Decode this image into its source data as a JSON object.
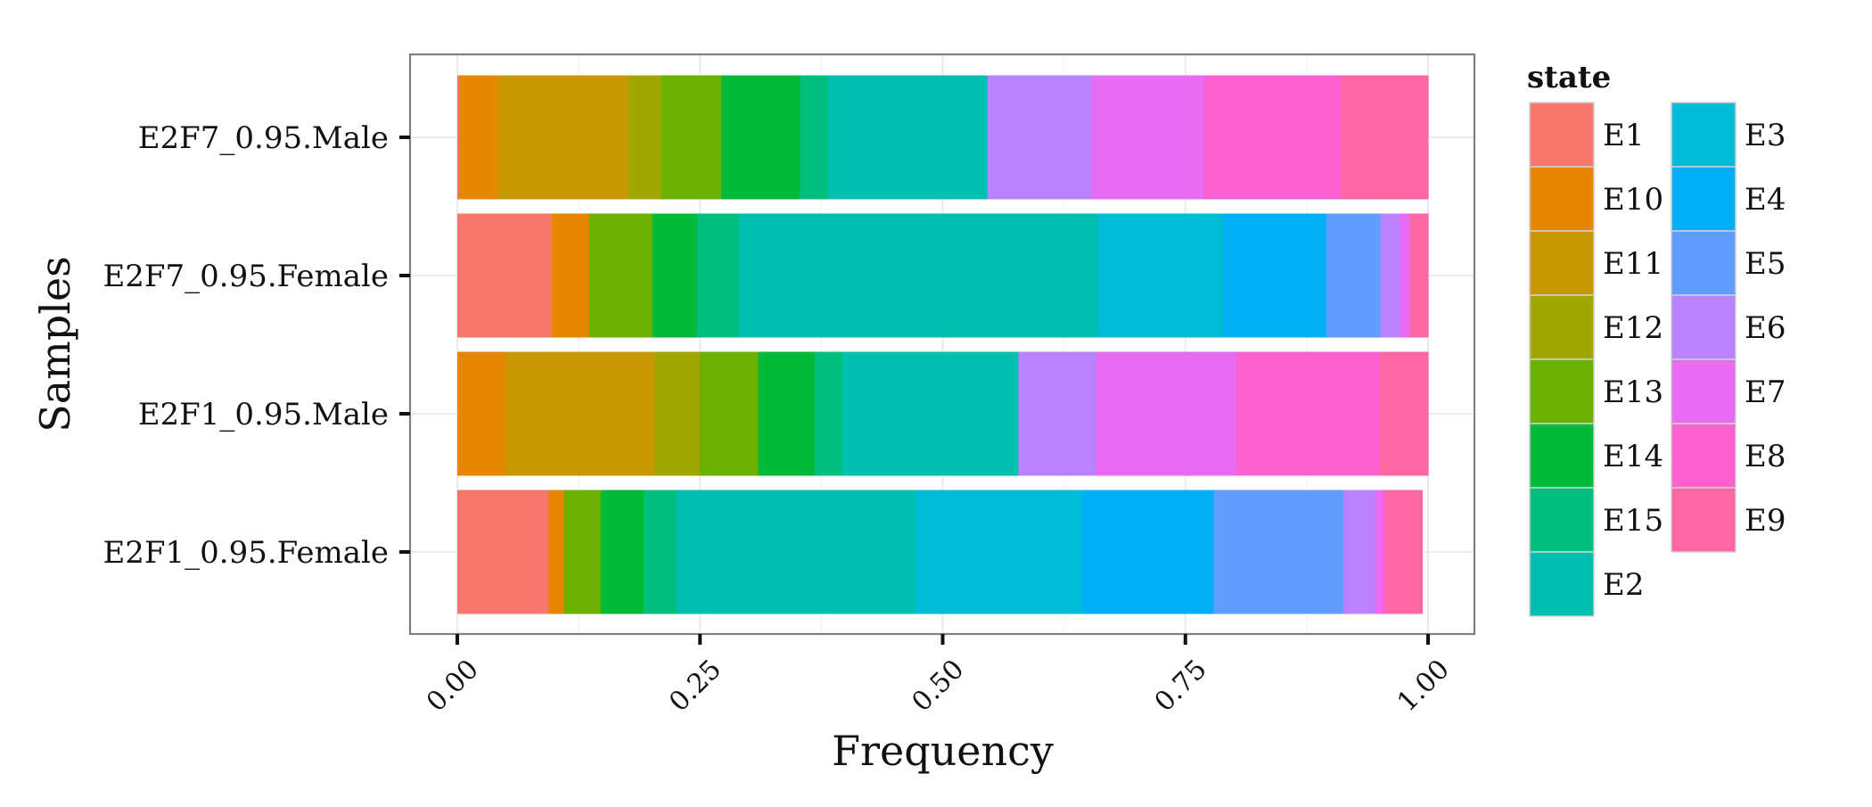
{
  "chart_data": {
    "type": "bar",
    "orientation": "horizontal",
    "stacked": true,
    "xlabel": "Frequency",
    "ylabel": "Samples",
    "xlim": [
      0,
      1
    ],
    "x_ticks": [
      "0.00",
      "0.25",
      "0.50",
      "0.75",
      "1.00"
    ],
    "grid": true,
    "legend_position": "right",
    "legend_title": "state",
    "categories": [
      "E2F7_0.95.Male",
      "E2F7_0.95.Female",
      "E2F1_0.95.Male",
      "E2F1_0.95.Female"
    ],
    "series": [
      {
        "name": "E1",
        "color": "#F8766D",
        "values": [
          0.002,
          0.097,
          0.0,
          0.094
        ]
      },
      {
        "name": "E10",
        "color": "#E58700",
        "values": [
          0.04,
          0.039,
          0.05,
          0.016
        ]
      },
      {
        "name": "E11",
        "color": "#C99800",
        "values": [
          0.134,
          0.0,
          0.153,
          0.0
        ]
      },
      {
        "name": "E12",
        "color": "#A3A500",
        "values": [
          0.034,
          0.0,
          0.047,
          0.0
        ]
      },
      {
        "name": "E13",
        "color": "#6BB100",
        "values": [
          0.062,
          0.065,
          0.06,
          0.038
        ]
      },
      {
        "name": "E14",
        "color": "#00BA38",
        "values": [
          0.081,
          0.046,
          0.058,
          0.044
        ]
      },
      {
        "name": "E15",
        "color": "#00BF7D",
        "values": [
          0.029,
          0.043,
          0.029,
          0.034
        ]
      },
      {
        "name": "E2",
        "color": "#00C0AF",
        "values": [
          0.164,
          0.369,
          0.181,
          0.246
        ]
      },
      {
        "name": "E3",
        "color": "#00BCD8",
        "values": [
          0.0,
          0.13,
          0.0,
          0.172
        ]
      },
      {
        "name": "E4",
        "color": "#00B0F6",
        "values": [
          0.0,
          0.106,
          0.0,
          0.135
        ]
      },
      {
        "name": "E5",
        "color": "#619CFF",
        "values": [
          0.0,
          0.056,
          0.0,
          0.134
        ]
      },
      {
        "name": "E6",
        "color": "#B983FF",
        "values": [
          0.107,
          0.02,
          0.08,
          0.032
        ]
      },
      {
        "name": "E7",
        "color": "#E76BF3",
        "values": [
          0.116,
          0.01,
          0.144,
          0.008
        ]
      },
      {
        "name": "E8",
        "color": "#FD61D1",
        "values": [
          0.141,
          0.0,
          0.148,
          0.003
        ]
      },
      {
        "name": "E9",
        "color": "#FF67A4",
        "values": [
          0.09,
          0.019,
          0.05,
          0.038
        ]
      }
    ]
  }
}
